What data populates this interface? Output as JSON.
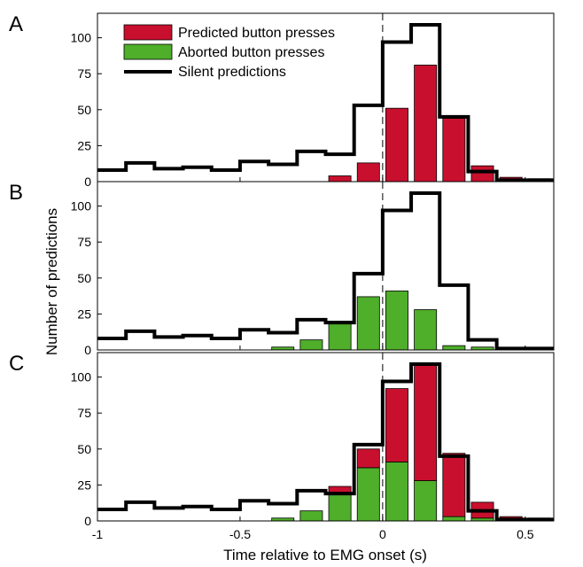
{
  "colors": {
    "predicted": "#c8102e",
    "aborted": "#4fae2a",
    "silent": "#000000"
  },
  "chart_data": {
    "type": "bar",
    "xlabel": "Time relative to EMG onset (s)",
    "ylabel": "Number of predictions",
    "xlim": [
      -1,
      0.6
    ],
    "ylim": [
      0,
      117
    ],
    "x_ticks": [
      -1,
      -0.5,
      0,
      0.5
    ],
    "x_tick_labels": [
      "-1",
      "-0.5",
      "0",
      "0.5"
    ],
    "y_ticks": [
      0,
      25,
      50,
      75,
      100
    ],
    "legend": {
      "placement": "top-left",
      "entries": [
        "Predicted button presses",
        "Aborted button presses",
        "Silent predictions"
      ]
    },
    "bin_edges": [
      -1.0,
      -0.9,
      -0.8,
      -0.7,
      -0.6,
      -0.5,
      -0.4,
      -0.3,
      -0.2,
      -0.1,
      0.0,
      0.1,
      0.2,
      0.3,
      0.4,
      0.5,
      0.6
    ],
    "bin_centers": [
      -0.95,
      -0.85,
      -0.75,
      -0.65,
      -0.55,
      -0.45,
      -0.35,
      -0.25,
      -0.15,
      -0.05,
      0.05,
      0.15,
      0.25,
      0.35,
      0.45,
      0.55
    ],
    "silent": [
      8,
      13,
      9,
      10,
      8,
      14,
      12,
      21,
      19,
      53,
      97,
      109,
      45,
      7,
      1,
      1
    ],
    "predicted": [
      0,
      0,
      0,
      0,
      0,
      0,
      0,
      0,
      4,
      13,
      51,
      81,
      44,
      11,
      3,
      2
    ],
    "aborted": [
      0,
      0,
      0,
      0,
      0,
      0,
      2,
      7,
      20,
      37,
      41,
      28,
      3,
      2,
      0,
      0
    ],
    "panels": [
      {
        "label": "A",
        "series": [
          "predicted",
          "silent"
        ],
        "mode": "overlay"
      },
      {
        "label": "B",
        "series": [
          "aborted",
          "silent"
        ],
        "mode": "overlay"
      },
      {
        "label": "C",
        "series": [
          "aborted",
          "predicted",
          "silent"
        ],
        "mode": "stacked"
      }
    ]
  }
}
